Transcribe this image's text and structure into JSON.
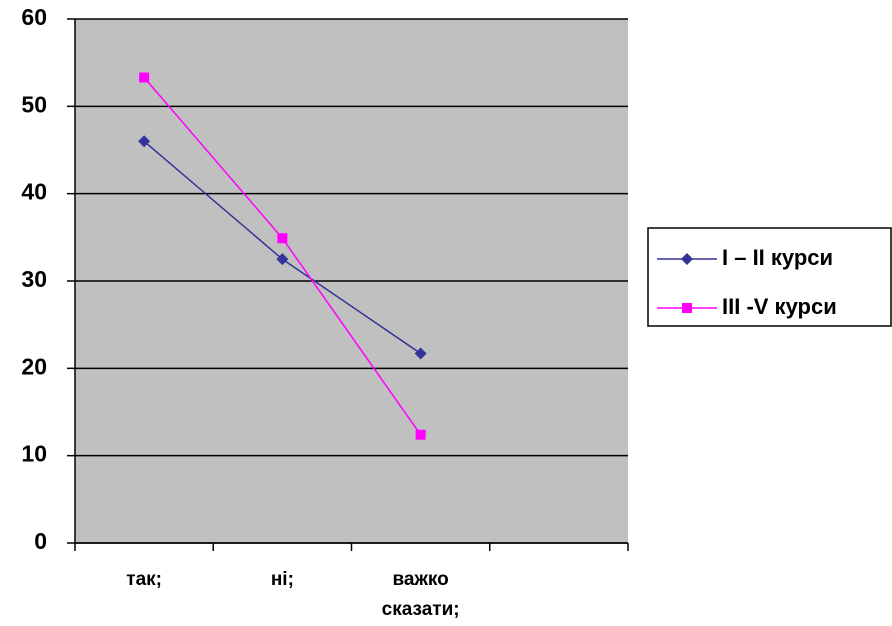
{
  "chart_data": {
    "type": "line",
    "categories": [
      "так;",
      "ні;",
      "важко сказати;",
      null
    ],
    "series": [
      {
        "name": "I – II курси",
        "color": "#333399",
        "marker": "diamond",
        "values": [
          46,
          32.5,
          21.7,
          null
        ]
      },
      {
        "name": "III -V курси",
        "color": "#ff00ff",
        "marker": "square",
        "values": [
          53.3,
          34.9,
          12.4,
          null
        ]
      }
    ],
    "ylim": [
      0,
      60
    ],
    "yticks": [
      0,
      10,
      20,
      30,
      40,
      50,
      60
    ],
    "grid": true,
    "legend": "right"
  }
}
